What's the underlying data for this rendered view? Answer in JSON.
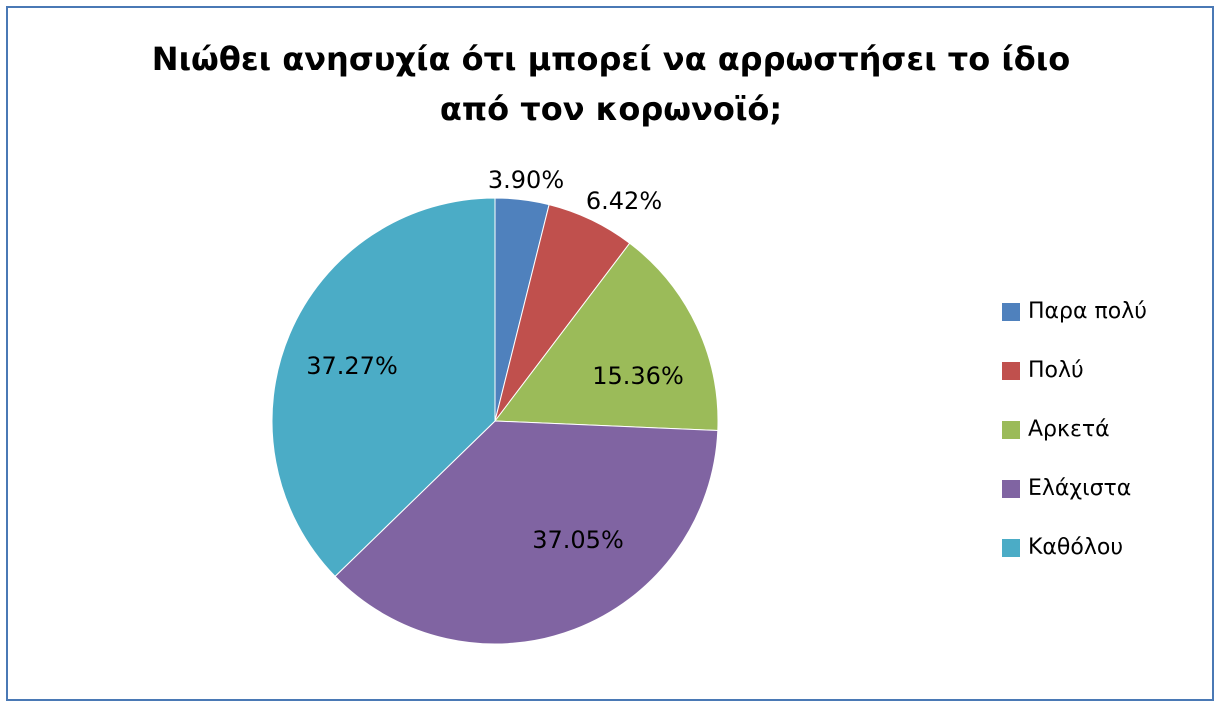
{
  "chart_data": {
    "type": "pie",
    "title_lines": [
      "Νιώθει ανησυχία ότι μπορεί να αρρωστήσει το ίδιο",
      "από τον κορωνοϊό;"
    ],
    "categories": [
      "Παρα πολύ",
      "Πολύ",
      "Αρκετά",
      "Ελάχιστα",
      "Καθόλου"
    ],
    "values": [
      3.9,
      6.42,
      15.36,
      37.05,
      37.27
    ],
    "data_labels": [
      "3.90%",
      "6.42%",
      "15.36%",
      "37.05%",
      "37.27%"
    ],
    "colors": [
      "#4f81bd",
      "#c0504d",
      "#9bbb59",
      "#8064a2",
      "#4bacc6"
    ],
    "legend_position": "right"
  }
}
